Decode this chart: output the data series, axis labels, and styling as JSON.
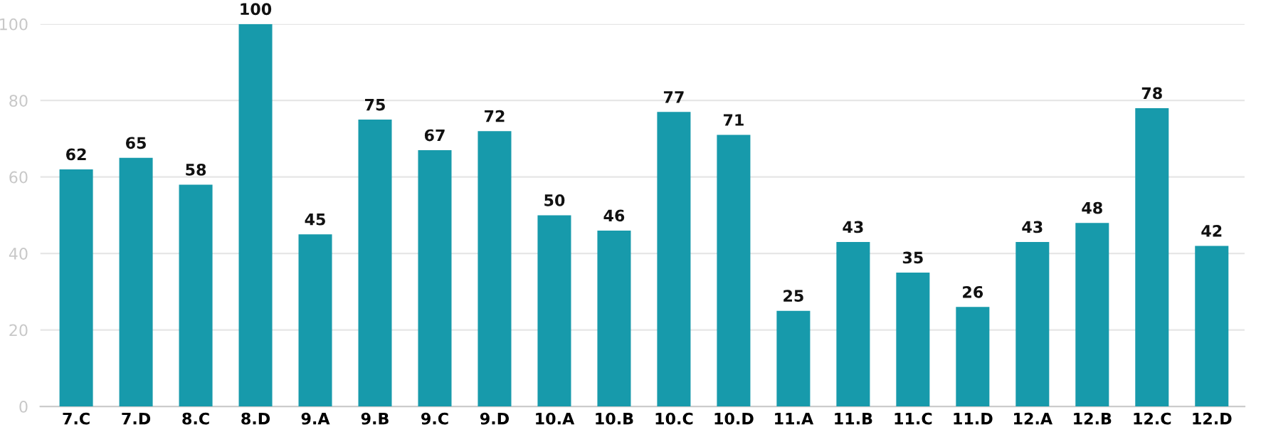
{
  "chart_data": {
    "type": "bar",
    "categories": [
      "7.C",
      "7.D",
      "8.C",
      "8.D",
      "9.A",
      "9.B",
      "9.C",
      "9.D",
      "10.A",
      "10.B",
      "10.C",
      "10.D",
      "11.A",
      "11.B",
      "11.C",
      "11.D",
      "12.A",
      "12.B",
      "12.C",
      "12.D"
    ],
    "values": [
      62,
      65,
      58,
      100,
      45,
      75,
      67,
      72,
      50,
      46,
      77,
      71,
      25,
      43,
      35,
      26,
      43,
      48,
      78,
      42
    ],
    "color": "#179aab",
    "ylim": [
      0,
      100
    ],
    "yticks": [
      0,
      20,
      40,
      60,
      80,
      100
    ],
    "grid": "y",
    "data_labels": true
  }
}
